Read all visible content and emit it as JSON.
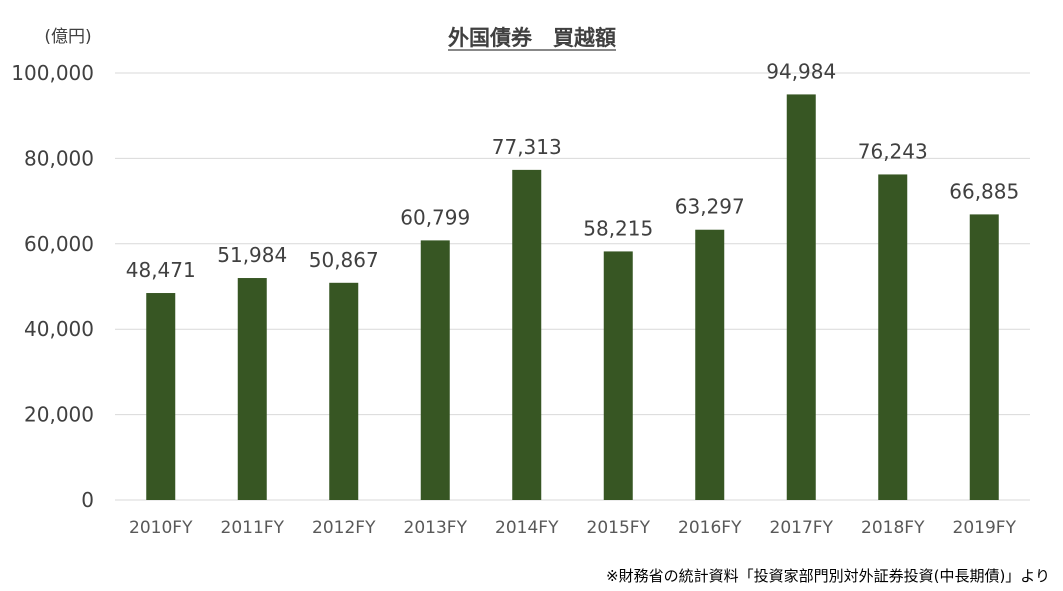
{
  "chart_data": {
    "type": "bar",
    "title": "外国債券　買越額",
    "unit_label": "(億円)",
    "categories": [
      "2010FY",
      "2011FY",
      "2012FY",
      "2013FY",
      "2014FY",
      "2015FY",
      "2016FY",
      "2017FY",
      "2018FY",
      "2019FY"
    ],
    "values": [
      48471,
      51984,
      50867,
      60799,
      77313,
      58215,
      63297,
      94984,
      76243,
      66885
    ],
    "value_labels": [
      "48,471",
      "51,984",
      "50,867",
      "60,799",
      "77,313",
      "58,215",
      "63,297",
      "94,984",
      "76,243",
      "66,885"
    ],
    "ylim": [
      0,
      100000
    ],
    "yticks": [
      0,
      20000,
      40000,
      60000,
      80000,
      100000
    ],
    "ytick_labels": [
      "0",
      "20,000",
      "40,000",
      "60,000",
      "80,000",
      "100,000"
    ],
    "grid": true,
    "legend": "none",
    "bar_color": "#375623",
    "grid_color": "#d9d9d9"
  },
  "source_note": "※財務省の統計資料「投資家部門別対外証券投資(中長期債)」より"
}
